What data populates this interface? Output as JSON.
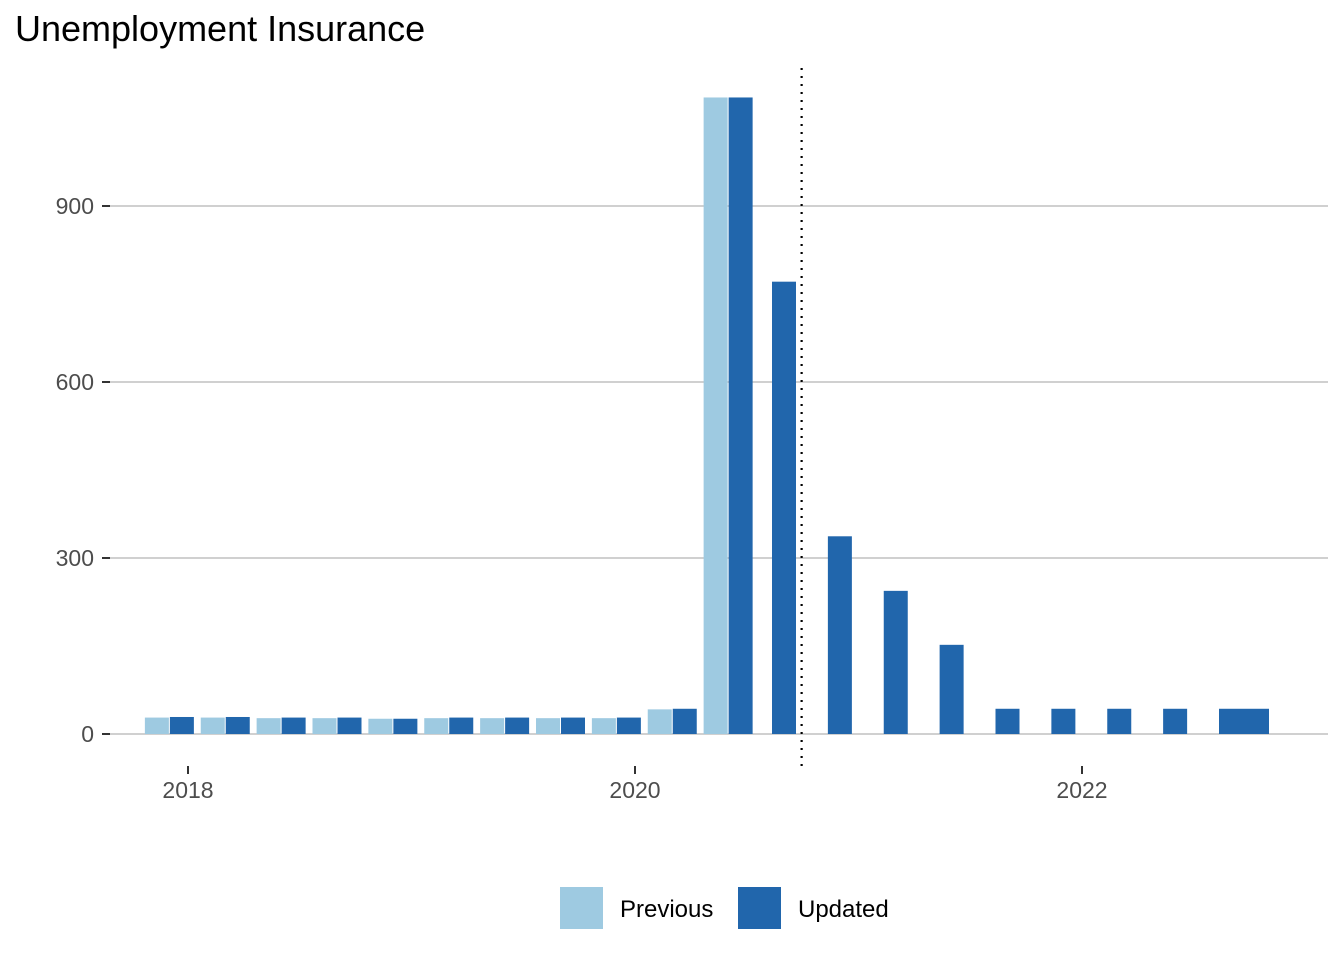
{
  "chart_data": {
    "type": "bar",
    "title": "Unemployment Insurance",
    "xlabel": "",
    "ylabel": "",
    "x_ticks": [
      "2018",
      "2020",
      "2022"
    ],
    "y_ticks": [
      0,
      300,
      600,
      900
    ],
    "ylim": [
      0,
      1100
    ],
    "xlim": [
      "2017-09",
      "2023-04"
    ],
    "grid": "horizontal",
    "legend_position": "bottom",
    "vertical_reference_line": {
      "date": "2020-10",
      "style": "dotted"
    },
    "colors": {
      "Previous": "#9ecae1",
      "Updated": "#2166ac"
    },
    "series": [
      {
        "name": "Previous",
        "points": [
          {
            "date": "2017-12",
            "value": 28
          },
          {
            "date": "2018-03",
            "value": 28
          },
          {
            "date": "2018-06",
            "value": 27
          },
          {
            "date": "2018-09",
            "value": 27
          },
          {
            "date": "2018-12",
            "value": 26
          },
          {
            "date": "2019-03",
            "value": 27
          },
          {
            "date": "2019-06",
            "value": 27
          },
          {
            "date": "2019-09",
            "value": 27
          },
          {
            "date": "2019-12",
            "value": 27
          },
          {
            "date": "2020-03",
            "value": 42
          },
          {
            "date": "2020-06",
            "value": 1085
          }
        ]
      },
      {
        "name": "Updated",
        "points": [
          {
            "date": "2017-12",
            "value": 29
          },
          {
            "date": "2018-03",
            "value": 29
          },
          {
            "date": "2018-06",
            "value": 28
          },
          {
            "date": "2018-09",
            "value": 28
          },
          {
            "date": "2018-12",
            "value": 26
          },
          {
            "date": "2019-03",
            "value": 28
          },
          {
            "date": "2019-06",
            "value": 28
          },
          {
            "date": "2019-09",
            "value": 28
          },
          {
            "date": "2019-12",
            "value": 28
          },
          {
            "date": "2020-03",
            "value": 43
          },
          {
            "date": "2020-06",
            "value": 1085
          },
          {
            "date": "2020-09",
            "value": 771
          },
          {
            "date": "2020-12",
            "value": 337
          },
          {
            "date": "2021-03",
            "value": 244
          },
          {
            "date": "2021-06",
            "value": 152
          },
          {
            "date": "2021-09",
            "value": 43
          },
          {
            "date": "2021-12",
            "value": 43
          },
          {
            "date": "2022-03",
            "value": 43
          },
          {
            "date": "2022-06",
            "value": 43
          },
          {
            "date": "2022-09",
            "value": 43
          }
        ]
      }
    ]
  }
}
